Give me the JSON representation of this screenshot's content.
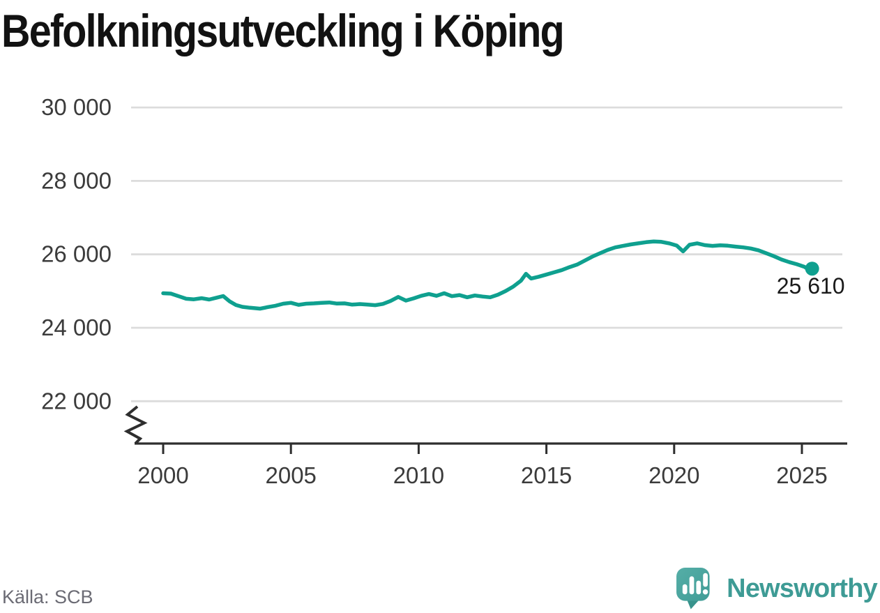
{
  "header": {
    "title": "Befolkningsutveckling i Köping"
  },
  "footer": {
    "source": "Källa: SCB",
    "brand": {
      "name": "Newsworthy",
      "logo": "newsworthy-speech-bubble-bar-chart-icon"
    }
  },
  "colors": {
    "line": "#0fa08f",
    "point": "#0fa08f",
    "grid": "#dcdcdc",
    "axis": "#2e2e2e",
    "tick_label": "#3b3b3b",
    "title": "#121212",
    "end_label": "#1a1a1a",
    "source": "#6b6b74",
    "brand_text": "#3e9b95",
    "logo_body_light": "#55aea7",
    "logo_body": "#47a29c",
    "logo_tail": "#38938c",
    "logo_glyphs": "#ffffff",
    "background": "#ffffff"
  },
  "chart_data": {
    "type": "line",
    "title": "Befolkningsutveckling i Köping",
    "xlabel": "",
    "ylabel": "",
    "grid": "horizontal",
    "legend": "none",
    "y_axis_break": true,
    "xlim": [
      1999.4,
      2026.7
    ],
    "ylim": [
      21500,
      30400
    ],
    "x_ticks": [
      2000,
      2005,
      2010,
      2015,
      2020,
      2025
    ],
    "y_ticks": [
      {
        "value": 30000,
        "label": "30 000"
      },
      {
        "value": 28000,
        "label": "28 000"
      },
      {
        "value": 26000,
        "label": "26 000"
      },
      {
        "value": 24000,
        "label": "24 000"
      },
      {
        "value": 22000,
        "label": "22 000"
      }
    ],
    "end_label": "25 610",
    "end_value": 25610,
    "series": [
      {
        "points": [
          [
            2000.0,
            24940
          ],
          [
            2000.3,
            24930
          ],
          [
            2000.6,
            24860
          ],
          [
            2000.9,
            24790
          ],
          [
            2001.2,
            24775
          ],
          [
            2001.5,
            24805
          ],
          [
            2001.8,
            24770
          ],
          [
            2002.1,
            24820
          ],
          [
            2002.35,
            24865
          ],
          [
            2002.6,
            24720
          ],
          [
            2002.85,
            24620
          ],
          [
            2003.1,
            24570
          ],
          [
            2003.4,
            24545
          ],
          [
            2003.8,
            24520
          ],
          [
            2004.1,
            24565
          ],
          [
            2004.4,
            24600
          ],
          [
            2004.7,
            24655
          ],
          [
            2005.0,
            24680
          ],
          [
            2005.3,
            24625
          ],
          [
            2005.6,
            24655
          ],
          [
            2005.9,
            24665
          ],
          [
            2006.2,
            24680
          ],
          [
            2006.5,
            24690
          ],
          [
            2006.8,
            24660
          ],
          [
            2007.1,
            24665
          ],
          [
            2007.4,
            24630
          ],
          [
            2007.7,
            24645
          ],
          [
            2008.0,
            24630
          ],
          [
            2008.3,
            24615
          ],
          [
            2008.6,
            24650
          ],
          [
            2008.9,
            24730
          ],
          [
            2009.2,
            24840
          ],
          [
            2009.5,
            24740
          ],
          [
            2009.8,
            24800
          ],
          [
            2010.1,
            24870
          ],
          [
            2010.4,
            24920
          ],
          [
            2010.7,
            24870
          ],
          [
            2011.0,
            24940
          ],
          [
            2011.3,
            24860
          ],
          [
            2011.6,
            24890
          ],
          [
            2011.9,
            24830
          ],
          [
            2012.2,
            24880
          ],
          [
            2012.5,
            24850
          ],
          [
            2012.8,
            24830
          ],
          [
            2013.1,
            24900
          ],
          [
            2013.4,
            25000
          ],
          [
            2013.7,
            25120
          ],
          [
            2014.0,
            25280
          ],
          [
            2014.2,
            25470
          ],
          [
            2014.4,
            25340
          ],
          [
            2014.7,
            25390
          ],
          [
            2015.0,
            25450
          ],
          [
            2015.3,
            25510
          ],
          [
            2015.6,
            25570
          ],
          [
            2015.9,
            25650
          ],
          [
            2016.2,
            25720
          ],
          [
            2016.5,
            25830
          ],
          [
            2016.8,
            25940
          ],
          [
            2017.1,
            26030
          ],
          [
            2017.4,
            26120
          ],
          [
            2017.7,
            26190
          ],
          [
            2018.0,
            26230
          ],
          [
            2018.3,
            26270
          ],
          [
            2018.6,
            26300
          ],
          [
            2018.9,
            26330
          ],
          [
            2019.2,
            26350
          ],
          [
            2019.5,
            26340
          ],
          [
            2019.8,
            26300
          ],
          [
            2020.1,
            26240
          ],
          [
            2020.35,
            26080
          ],
          [
            2020.6,
            26260
          ],
          [
            2020.9,
            26300
          ],
          [
            2021.2,
            26250
          ],
          [
            2021.5,
            26230
          ],
          [
            2021.8,
            26245
          ],
          [
            2022.1,
            26235
          ],
          [
            2022.4,
            26210
          ],
          [
            2022.7,
            26190
          ],
          [
            2023.0,
            26160
          ],
          [
            2023.3,
            26110
          ],
          [
            2023.6,
            26030
          ],
          [
            2023.9,
            25950
          ],
          [
            2024.2,
            25860
          ],
          [
            2024.5,
            25790
          ],
          [
            2024.8,
            25730
          ],
          [
            2025.1,
            25660
          ],
          [
            2025.25,
            25590
          ],
          [
            2025.4,
            25610
          ]
        ]
      }
    ]
  }
}
